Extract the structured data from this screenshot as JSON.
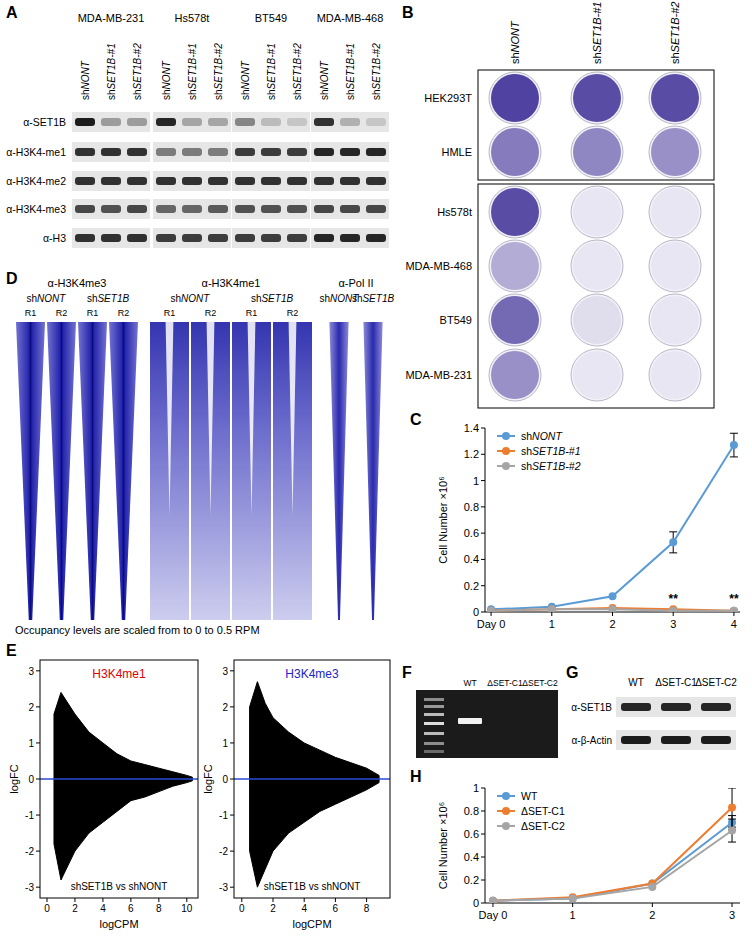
{
  "panel_labels": [
    "A",
    "B",
    "C",
    "D",
    "E",
    "F",
    "G",
    "H"
  ],
  "blots": {
    "rows": [
      "α-SET1B",
      "α-H3K4-me1",
      "α-H3K4-me2",
      "α-H3K4-me3",
      "α-H3"
    ],
    "cell_lines": [
      {
        "name": "MDA-MB-231",
        "lanes": [
          "shNONT",
          "shSET1B-#1",
          "shSET1B-#2"
        ],
        "intensity": [
          [
            0.95,
            0.35,
            0.35
          ],
          [
            0.85,
            0.85,
            0.85
          ],
          [
            0.85,
            0.85,
            0.85
          ],
          [
            0.75,
            0.7,
            0.75
          ],
          [
            0.85,
            0.85,
            0.85
          ]
        ]
      },
      {
        "name": "Hs578t",
        "lanes": [
          "shNONT",
          "shSET1B-#1",
          "shSET1B-#2"
        ],
        "intensity": [
          [
            0.9,
            0.3,
            0.3
          ],
          [
            0.5,
            0.5,
            0.5
          ],
          [
            0.85,
            0.85,
            0.85
          ],
          [
            0.6,
            0.6,
            0.65
          ],
          [
            0.8,
            0.8,
            0.8
          ]
        ]
      },
      {
        "name": "BT549",
        "lanes": [
          "shNONT",
          "shSET1B-#1",
          "shSET1B-#2"
        ],
        "intensity": [
          [
            0.45,
            0.2,
            0.15
          ],
          [
            0.8,
            0.8,
            0.8
          ],
          [
            0.85,
            0.85,
            0.85
          ],
          [
            0.7,
            0.7,
            0.7
          ],
          [
            0.8,
            0.8,
            0.8
          ]
        ]
      },
      {
        "name": "MDA-MB-468",
        "lanes": [
          "shNONT",
          "shSET1B-#1",
          "shSET1B-#2"
        ],
        "intensity": [
          [
            0.85,
            0.25,
            0.15
          ],
          [
            0.9,
            0.9,
            0.9
          ],
          [
            0.85,
            0.85,
            0.85
          ],
          [
            0.75,
            0.75,
            0.75
          ],
          [
            0.9,
            0.9,
            0.9
          ]
        ]
      }
    ]
  },
  "plates": {
    "columns": [
      "shNONT",
      "shSET1B-#1",
      "shSET1B-#2"
    ],
    "groups": [
      {
        "rows": [
          {
            "name": "HEK293T",
            "stain": [
              0.9,
              0.85,
              0.85
            ]
          },
          {
            "name": "HMLE",
            "stain": [
              0.6,
              0.55,
              0.5
            ]
          }
        ]
      },
      {
        "rows": [
          {
            "name": "Hs578t",
            "stain": [
              0.85,
              0.05,
              0.05
            ]
          },
          {
            "name": "MDA-MB-468",
            "stain": [
              0.35,
              0.05,
              0.05
            ]
          },
          {
            "name": "BT549",
            "stain": [
              0.7,
              0.1,
              0.05
            ]
          },
          {
            "name": "MDA-MB-231",
            "stain": [
              0.5,
              0.05,
              0.05
            ]
          }
        ]
      }
    ]
  },
  "heatmap": {
    "marks": [
      {
        "name": "α-H3K4me3",
        "conditions": [
          {
            "name": "shNONT",
            "replicates": [
              "R1",
              "R2"
            ]
          },
          {
            "name": "shSET1B",
            "replicates": [
              "R1",
              "R2"
            ]
          }
        ]
      },
      {
        "name": "α-H3K4me1",
        "conditions": [
          {
            "name": "shNONT",
            "replicates": [
              "R1",
              "R2"
            ]
          },
          {
            "name": "shSET1B",
            "replicates": [
              "R1",
              "R2"
            ]
          }
        ]
      },
      {
        "name": "α-Pol II",
        "conditions": [
          {
            "name": "shNONT",
            "replicates": []
          },
          {
            "name": "shSET1B",
            "replicates": []
          }
        ]
      }
    ],
    "caption": "Occupancy levels are scaled from to 0 to 0.5 RPM"
  },
  "gel": {
    "lanes": [
      "WT",
      "ΔSET-C1",
      "ΔSET-C2"
    ],
    "band": [
      1,
      0,
      0
    ]
  },
  "blot_g": {
    "lanes": [
      "WT",
      "ΔSET-C1",
      "ΔSET-C2"
    ],
    "rows": [
      {
        "name": "α-SET1B",
        "intensity": [
          0.9,
          0.9,
          0.9
        ]
      },
      {
        "name": "α-β-Actin",
        "intensity": [
          0.95,
          0.95,
          0.95
        ]
      }
    ]
  },
  "chart_data": [
    {
      "type": "line",
      "y_label": "Cell Number ×10⁶",
      "x": [
        0,
        1,
        2,
        3,
        4
      ],
      "xlim": [
        -0.1,
        4.1
      ],
      "xticks": [
        {
          "value": 0,
          "label": "Day 0"
        },
        1,
        2,
        3,
        4
      ],
      "ylim": [
        0,
        1.4
      ],
      "yticks": [
        0,
        0.2,
        0.4,
        0.6,
        0.8,
        1,
        1.2,
        1.4
      ],
      "legend": "top-left",
      "marker": "circle",
      "series": [
        {
          "name": "shNONT",
          "color": "#5b9bd5",
          "values": [
            0.02,
            0.04,
            0.12,
            0.53,
            1.27
          ],
          "errors": [
            null,
            null,
            null,
            0.08,
            0.09
          ]
        },
        {
          "name": "shSET1B-#1",
          "color": "#ed7d31",
          "values": [
            0.01,
            0.02,
            0.03,
            0.02,
            0.01
          ],
          "errors": [
            null,
            null,
            null,
            null,
            null
          ]
        },
        {
          "name": "shSET1B-#2",
          "color": "#a5a5a5",
          "values": [
            0.01,
            0.02,
            0.02,
            0.01,
            0.01
          ],
          "errors": [
            null,
            null,
            null,
            null,
            null
          ]
        }
      ],
      "annotations": [
        {
          "text": "**",
          "x": 3,
          "y": 0.05
        },
        {
          "text": "**",
          "x": 4,
          "y": 0.05
        }
      ]
    },
    {
      "type": "area",
      "title": "H3K4me1",
      "x_label": "logCPM",
      "y_label": "logFC",
      "annotation": "shSET1B vs shNONT",
      "xlim": [
        -0.5,
        10.8
      ],
      "xticks": [
        0,
        2,
        4,
        6,
        8,
        10
      ],
      "ylim": [
        -3.3,
        3.3
      ],
      "yticks": [
        -3,
        -2,
        -1,
        0,
        1,
        2,
        3
      ],
      "x": [
        0.5,
        1,
        1.5,
        2,
        3,
        4,
        5,
        6,
        7,
        8,
        9,
        10,
        10.4
      ],
      "series": [
        {
          "color": "#000000",
          "values": [
            1.8,
            2.4,
            2.1,
            1.8,
            1.3,
            1.0,
            0.7,
            0.5,
            0.4,
            0.3,
            0.2,
            0.1,
            0.05
          ]
        },
        {
          "color": "#000000",
          "values": [
            -1.8,
            -2.8,
            -2.4,
            -2.0,
            -1.5,
            -1.2,
            -0.9,
            -0.6,
            -0.5,
            -0.35,
            -0.2,
            -0.1,
            -0.05
          ]
        }
      ]
    },
    {
      "type": "area",
      "title": "H3K4me3",
      "x_label": "logCPM",
      "y_label": "logFC",
      "annotation": "shSET1B vs shNONT",
      "xlim": [
        -0.5,
        9.5
      ],
      "xticks": [
        0,
        2,
        4,
        6,
        8
      ],
      "ylim": [
        -3.3,
        3.3
      ],
      "yticks": [
        -3,
        -2,
        -1,
        0,
        1,
        2,
        3
      ],
      "x": [
        0.5,
        1,
        1.5,
        2,
        3,
        4,
        5,
        6,
        7,
        8,
        8.8
      ],
      "series": [
        {
          "color": "#000000",
          "values": [
            2.0,
            2.7,
            2.1,
            1.7,
            1.3,
            1.0,
            0.8,
            0.6,
            0.45,
            0.3,
            0.1
          ]
        },
        {
          "color": "#000000",
          "values": [
            -2.0,
            -3.0,
            -2.5,
            -2.0,
            -1.5,
            -1.2,
            -0.9,
            -0.7,
            -0.5,
            -0.3,
            -0.1
          ]
        }
      ]
    },
    {
      "type": "line",
      "y_label": "Cell Number ×10⁶",
      "x": [
        0,
        1,
        2,
        3
      ],
      "xlim": [
        -0.1,
        3.1
      ],
      "xticks": [
        {
          "value": 0,
          "label": "Day 0"
        },
        1,
        2,
        3
      ],
      "ylim": [
        0,
        1
      ],
      "yticks": [
        0,
        0.2,
        0.4,
        0.6,
        0.8,
        1
      ],
      "legend": "top-left",
      "marker": "circle",
      "series": [
        {
          "name": "WT",
          "color": "#5b9bd5",
          "values": [
            0.02,
            0.04,
            0.17,
            0.7
          ],
          "errors": [
            null,
            null,
            null,
            0.06
          ]
        },
        {
          "name": "ΔSET-C1",
          "color": "#ed7d31",
          "values": [
            0.02,
            0.05,
            0.17,
            0.83
          ],
          "errors": [
            null,
            null,
            null,
            0.17
          ]
        },
        {
          "name": "ΔSET-C2",
          "color": "#a5a5a5",
          "values": [
            0.02,
            0.04,
            0.14,
            0.63
          ],
          "errors": [
            null,
            null,
            null,
            0.1
          ]
        }
      ]
    }
  ]
}
